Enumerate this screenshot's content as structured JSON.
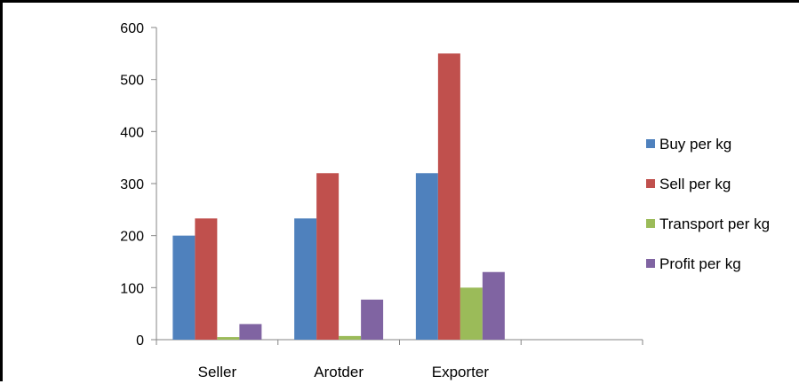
{
  "chart_data": {
    "type": "bar",
    "categories": [
      "Seller",
      "Arotder",
      "Exporter",
      ""
    ],
    "series": [
      {
        "name": "Buy per kg",
        "color": "#4F81BD",
        "values": [
          200,
          233,
          320,
          null
        ]
      },
      {
        "name": "Sell per kg",
        "color": "#C0504D",
        "values": [
          233,
          320,
          550,
          null
        ]
      },
      {
        "name": "Transport per kg",
        "color": "#9BBB59",
        "values": [
          5,
          7,
          100,
          null
        ]
      },
      {
        "name": "Profit per kg",
        "color": "#8064A2",
        "values": [
          30,
          77,
          130,
          null
        ]
      }
    ],
    "yticks": [
      0,
      100,
      200,
      300,
      400,
      500,
      600
    ],
    "ylim": [
      0,
      600
    ],
    "grid": false,
    "legend": "right"
  }
}
